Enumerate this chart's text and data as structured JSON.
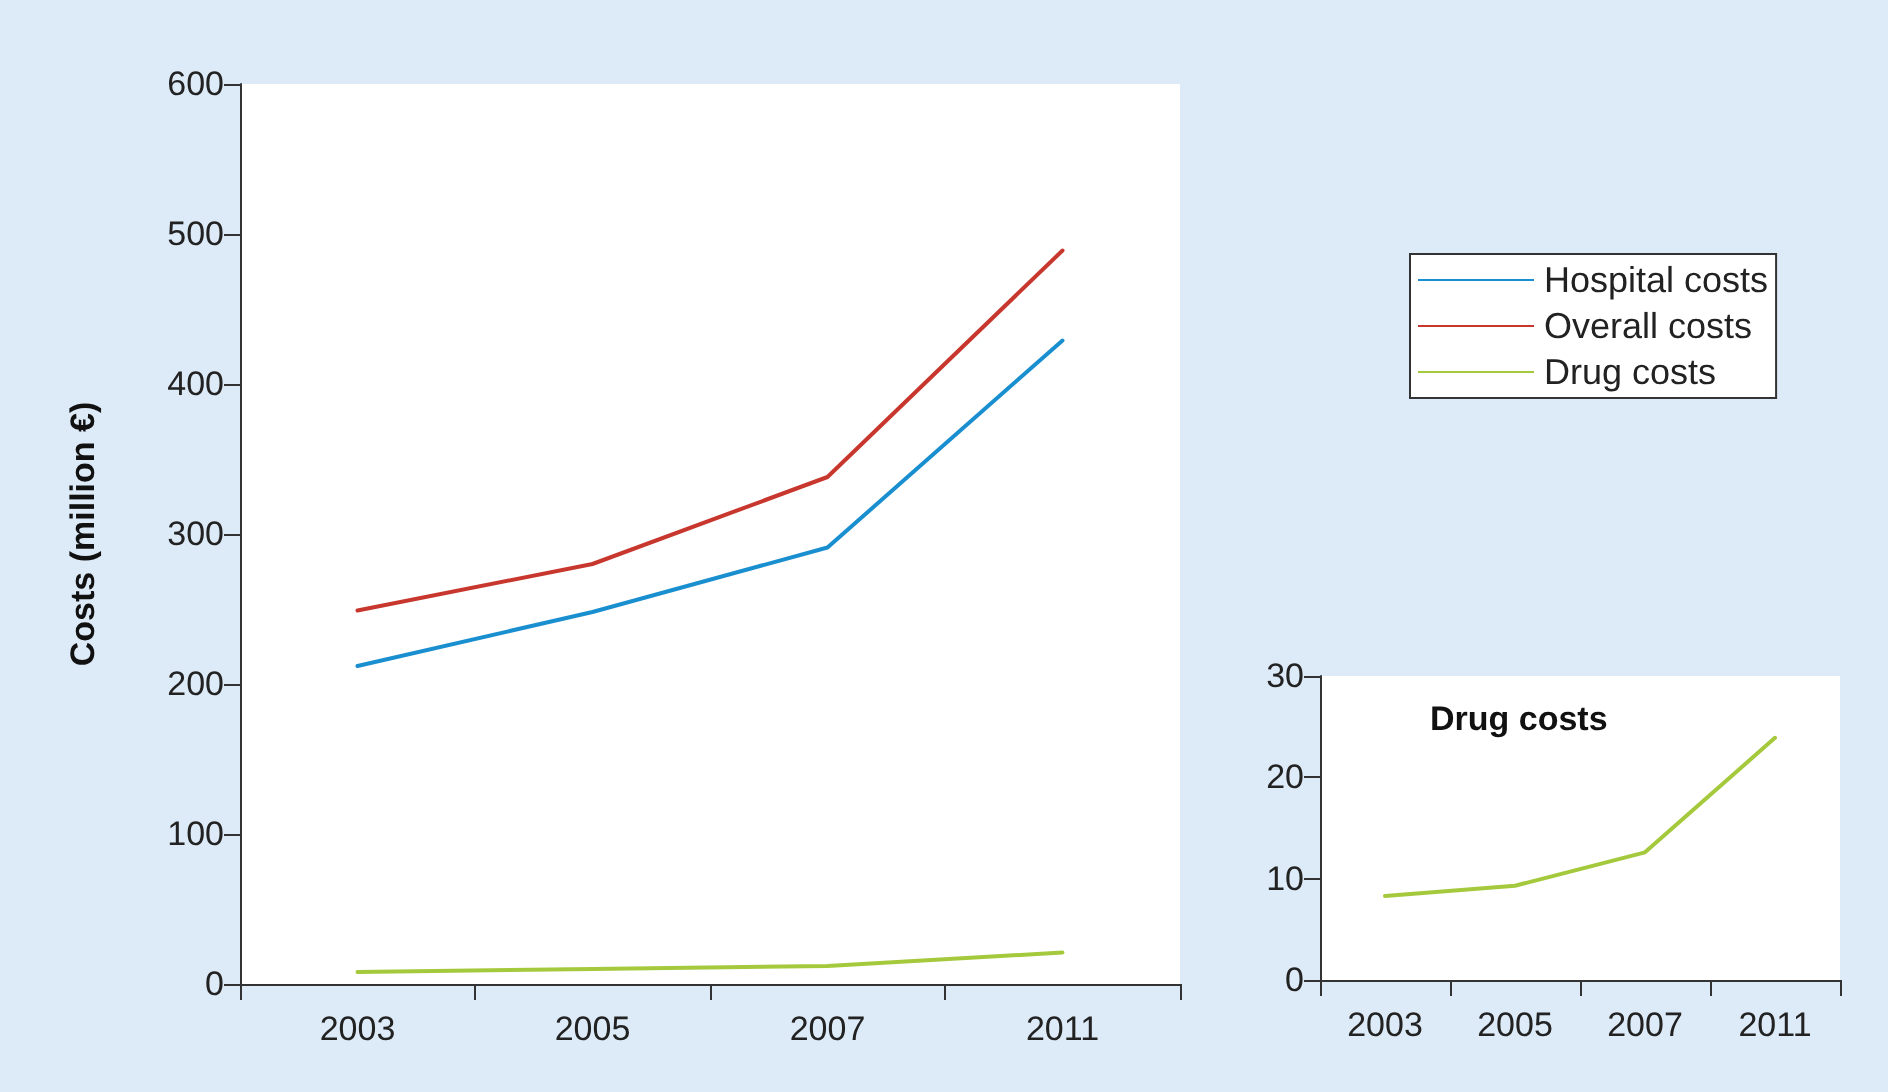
{
  "chart_data": [
    {
      "type": "line",
      "categories": [
        "2003",
        "2005",
        "2007",
        "2011"
      ],
      "ylabel": "Costs (million €)",
      "ylim": [
        0,
        600
      ],
      "yticks": [
        0,
        100,
        200,
        300,
        400,
        500,
        600
      ],
      "grid": false,
      "legend": "right",
      "marker": "none",
      "line_style": "solid",
      "series": [
        {
          "name": "Hospital costs",
          "color": "#1a8fd0",
          "values": [
            212,
            248,
            291,
            429
          ]
        },
        {
          "name": "Overall costs",
          "color": "#c8372d",
          "values": [
            249,
            280,
            338,
            489
          ]
        },
        {
          "name": "Drug costs",
          "color": "#a5c93c",
          "values": [
            8,
            10,
            12,
            21
          ]
        }
      ]
    },
    {
      "type": "line",
      "title": "Drug costs",
      "categories": [
        "2003",
        "2005",
        "2007",
        "2011"
      ],
      "ylim": [
        0,
        30
      ],
      "yticks": [
        0,
        10,
        20,
        30
      ],
      "grid": false,
      "marker": "none",
      "line_style": "solid",
      "series": [
        {
          "color": "#a5c93c",
          "values": [
            8.3,
            9.3,
            12.6,
            23.9
          ]
        }
      ]
    }
  ]
}
